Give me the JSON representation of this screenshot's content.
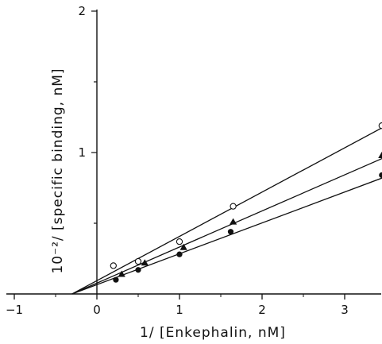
{
  "chart_data": {
    "type": "scatter",
    "xlabel": "1/ [Enkephalin, nM]",
    "ylabel": "10⁻²/ [specific binding, nM]",
    "xlim": [
      -1,
      3.5
    ],
    "ylim": [
      0,
      2
    ],
    "x_ticks": [
      -1,
      0,
      1,
      2,
      3
    ],
    "x_tick_labels": [
      "−1",
      "0",
      "1",
      "2",
      "3"
    ],
    "y_ticks": [
      1,
      2
    ],
    "y_tick_labels": [
      "1",
      "2"
    ],
    "grid": false,
    "series": [
      {
        "marker": "open-circle",
        "points": [
          {
            "x": 0.2,
            "y": 0.2
          },
          {
            "x": 0.5,
            "y": 0.23
          },
          {
            "x": 1.0,
            "y": 0.37
          },
          {
            "x": 1.65,
            "y": 0.62
          },
          {
            "x": 3.45,
            "y": 1.19
          }
        ],
        "fit_line": [
          [
            -0.3,
            0.0
          ],
          [
            3.5,
            1.19
          ]
        ]
      },
      {
        "marker": "filled-triangle",
        "points": [
          {
            "x": 0.3,
            "y": 0.14
          },
          {
            "x": 0.58,
            "y": 0.22
          },
          {
            "x": 1.05,
            "y": 0.33
          },
          {
            "x": 1.65,
            "y": 0.51
          },
          {
            "x": 3.45,
            "y": 0.98
          }
        ],
        "fit_line": [
          [
            -0.3,
            0.0
          ],
          [
            3.5,
            0.97
          ]
        ]
      },
      {
        "marker": "filled-circle",
        "points": [
          {
            "x": 0.23,
            "y": 0.1
          },
          {
            "x": 0.5,
            "y": 0.17
          },
          {
            "x": 1.0,
            "y": 0.28
          },
          {
            "x": 1.62,
            "y": 0.44
          },
          {
            "x": 3.45,
            "y": 0.84
          }
        ],
        "fit_line": [
          [
            -0.3,
            0.0
          ],
          [
            3.5,
            0.83
          ]
        ]
      }
    ]
  }
}
